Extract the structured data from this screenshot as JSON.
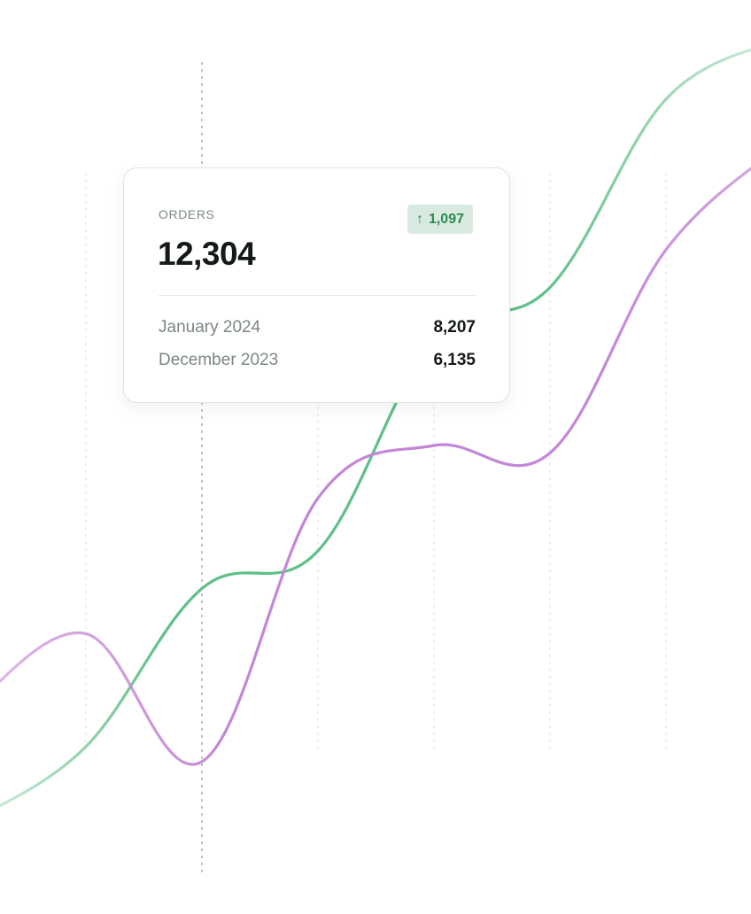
{
  "chart_data": {
    "type": "line",
    "x": [
      0,
      1,
      2,
      3,
      4,
      5,
      6,
      7
    ],
    "series": [
      {
        "color": "#5fbf88",
        "values": [
          5200,
          6200,
          8300,
          8800,
          11600,
          12300,
          14800,
          15600
        ]
      },
      {
        "color": "#c486d6",
        "values": [
          6700,
          7700,
          6000,
          9500,
          10200,
          10100,
          12800,
          14200
        ]
      }
    ],
    "ylim": [
      4000,
      16000
    ],
    "grid": "vertical-dotted",
    "highlight_index": 2
  },
  "tooltip": {
    "label": "ORDERS",
    "total": "12,304",
    "change": "1,097",
    "change_icon": "arrow-up-icon",
    "rows": [
      {
        "period": "January 2024",
        "value": "8,207"
      },
      {
        "period": "December 2023",
        "value": "6,135"
      }
    ]
  },
  "colors": {
    "accent_green": "#2f8a50",
    "badge_bg": "#d9ebe0",
    "grid": "#d9dedd"
  }
}
